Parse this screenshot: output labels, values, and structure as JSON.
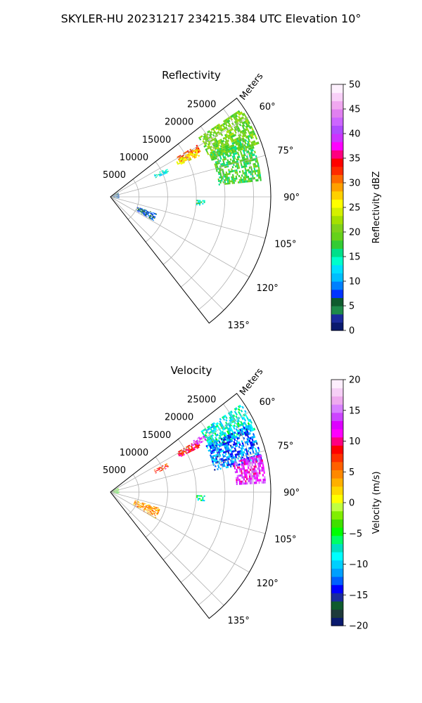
{
  "figure": {
    "title": "SKYLER-HU  20231217  234215.384 UTC Elevation 10°"
  },
  "chart_data": [
    {
      "type": "heatmap",
      "projection": "polar sector",
      "title": "Reflectivity",
      "range_label": "Meters",
      "range_ticks": [
        5000,
        10000,
        15000,
        20000,
        25000
      ],
      "r_max": 28000,
      "azimuth_ticks": [
        "60°",
        "75°",
        "90°",
        "105°",
        "120°",
        "135°"
      ],
      "azimuth_tick_values": [
        60,
        75,
        90,
        105,
        120,
        135
      ],
      "azimuth_range": [
        52,
        142
      ],
      "grid": true,
      "colorbar": {
        "label": "Reflectivity dBZ",
        "min": 0,
        "max": 50,
        "ticks": [
          "0",
          "5",
          "10",
          "15",
          "20",
          "25",
          "30",
          "35",
          "40",
          "45",
          "50"
        ],
        "tick_values": [
          0,
          5,
          10,
          15,
          20,
          25,
          30,
          35,
          40,
          45,
          50
        ],
        "colors": [
          "#0a1a6e",
          "#1b2b9c",
          "#1e8a4a",
          "#0f5b2e",
          "#0033ff",
          "#0080ff",
          "#00bfff",
          "#00e0ff",
          "#00ffcc",
          "#00e08a",
          "#33cc33",
          "#66d11a",
          "#7fd11a",
          "#a5e000",
          "#d4f000",
          "#ffff00",
          "#ffd000",
          "#ffa000",
          "#ff6a00",
          "#ff2a00",
          "#ff0000",
          "#ff0080",
          "#ff00ff",
          "#cc33ff",
          "#b04cff",
          "#cc66ff",
          "#e080f0",
          "#f0a8f0",
          "#f8d0f8",
          "#fdf0fd"
        ]
      },
      "echoes": [
        {
          "az_min": 56,
          "az_max": 70,
          "r_min": 18500,
          "r_max": 27500,
          "value": 20
        },
        {
          "az_min": 66,
          "az_max": 84,
          "r_min": 19000,
          "r_max": 26500,
          "value": 18
        },
        {
          "az_min": 59,
          "az_max": 63,
          "r_min": 13500,
          "r_max": 17500,
          "value": 32
        },
        {
          "az_min": 61,
          "az_max": 65,
          "r_min": 13000,
          "r_max": 17000,
          "value": 26
        },
        {
          "az_min": 63,
          "az_max": 67,
          "r_min": 8500,
          "r_max": 11000,
          "value": 13
        },
        {
          "az_min": 92,
          "az_max": 95,
          "r_min": 15000,
          "r_max": 16500,
          "value": 15
        },
        {
          "az_min": 60,
          "az_max": 100,
          "r_min": 0,
          "r_max": 1500,
          "value": 6
        },
        {
          "az_min": 110,
          "az_max": 119,
          "r_min": 5000,
          "r_max": 8500,
          "value": 7
        }
      ]
    },
    {
      "type": "heatmap",
      "projection": "polar sector",
      "title": "Velocity",
      "range_label": "Meters",
      "range_ticks": [
        5000,
        10000,
        15000,
        20000,
        25000
      ],
      "r_max": 28000,
      "azimuth_ticks": [
        "60°",
        "75°",
        "90°",
        "105°",
        "120°",
        "135°"
      ],
      "azimuth_tick_values": [
        60,
        75,
        90,
        105,
        120,
        135
      ],
      "azimuth_range": [
        52,
        142
      ],
      "grid": true,
      "colorbar": {
        "label": "Velocity (m/s)",
        "min": -20,
        "max": 20,
        "ticks": [
          "−20",
          "−15",
          "−10",
          "−5",
          "0",
          "5",
          "10",
          "15",
          "20"
        ],
        "tick_values": [
          -20,
          -15,
          -10,
          -5,
          0,
          5,
          10,
          15,
          20
        ],
        "colors": [
          "#0a1a6e",
          "#1e3a3a",
          "#0f5b2e",
          "#1b2b9c",
          "#0000ff",
          "#0060ff",
          "#00a0ff",
          "#00d0ff",
          "#00ffff",
          "#00e0c0",
          "#00ff66",
          "#00ff00",
          "#40e000",
          "#80ee00",
          "#c0ff40",
          "#ffff00",
          "#ffd800",
          "#ffb000",
          "#ff8800",
          "#ff6000",
          "#ff3000",
          "#ff0000",
          "#ff0080",
          "#ff00ff",
          "#dd00ff",
          "#cc44ff",
          "#d880ff",
          "#eeaaee",
          "#f6cff6",
          "#fdeefd"
        ]
      },
      "echoes": [
        {
          "az_min": 56,
          "az_max": 66,
          "r_min": 19000,
          "r_max": 27500,
          "value": -8
        },
        {
          "az_min": 64,
          "az_max": 78,
          "r_min": 18500,
          "r_max": 27000,
          "value": -12
        },
        {
          "az_min": 76,
          "az_max": 86,
          "r_min": 22000,
          "r_max": 27000,
          "value": 13
        },
        {
          "az_min": 59,
          "az_max": 63,
          "r_min": 13500,
          "r_max": 17500,
          "value": 9
        },
        {
          "az_min": 58,
          "az_max": 61,
          "r_min": 17000,
          "r_max": 19000,
          "value": 14
        },
        {
          "az_min": 63,
          "az_max": 67,
          "r_min": 8500,
          "r_max": 11000,
          "value": 7
        },
        {
          "az_min": 92,
          "az_max": 95,
          "r_min": 15000,
          "r_max": 16500,
          "value": -7
        },
        {
          "az_min": 60,
          "az_max": 100,
          "r_min": 0,
          "r_max": 1500,
          "value": -3
        },
        {
          "az_min": 108,
          "az_max": 120,
          "r_min": 4500,
          "r_max": 9000,
          "value": 4
        }
      ]
    }
  ]
}
